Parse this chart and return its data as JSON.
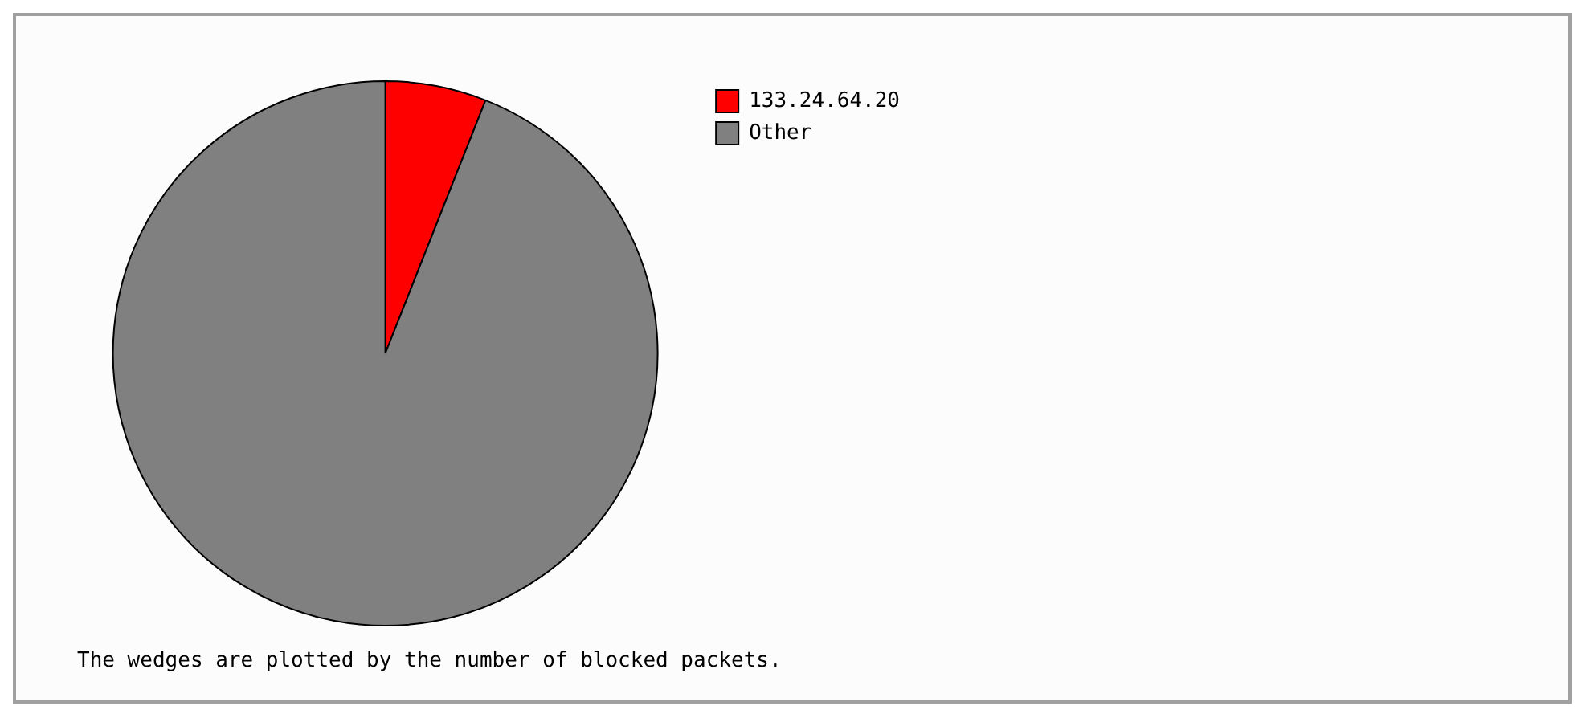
{
  "chart_data": {
    "type": "pie",
    "categories": [
      "133.24.64.20",
      "Other"
    ],
    "values": [
      6,
      94
    ],
    "colors": [
      "#ff0000",
      "#808080"
    ],
    "legend": "top right",
    "annotations": [
      "The wedges are plotted by the number of blocked packets."
    ]
  }
}
